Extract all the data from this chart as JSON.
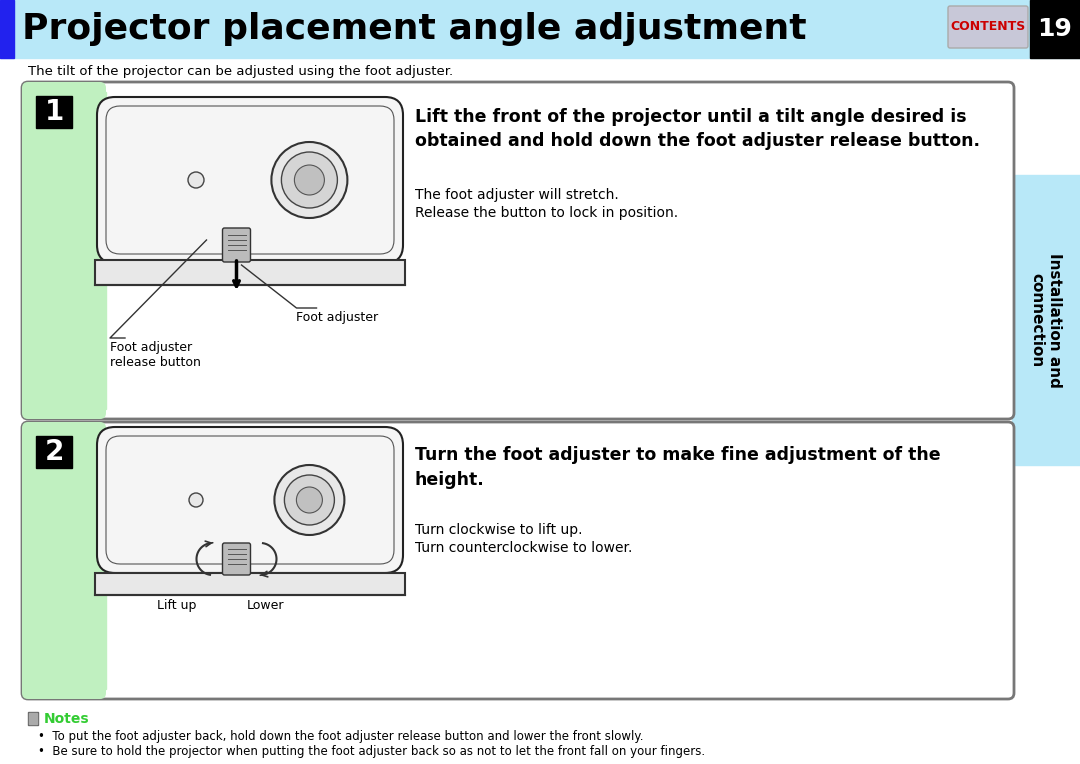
{
  "title": "Projector placement angle adjustment",
  "title_bg_color": "#b8e8f8",
  "title_text_color": "#000000",
  "title_bar_color": "#2222ee",
  "page_num": "19",
  "page_num_bg": "#000000",
  "contents_text": "CONTENTS",
  "contents_bg": "#c8c8d8",
  "contents_text_color": "#cc0000",
  "sidebar_text": "Installation and\nconnection",
  "sidebar_bg": "#b8e8f8",
  "subtitle": "The tilt of the projector can be adjusted using the foot adjuster.",
  "box1_num": "1",
  "box1_fill": "#ffffff",
  "box1_left_fill": "#c0f0c0",
  "box1_border": "#888888",
  "box1_bold_text": "Lift the front of the projector until a tilt angle desired is\nobtained and hold down the foot adjuster release button.",
  "box1_text1": "The foot adjuster will stretch.",
  "box1_text2": "Release the button to lock in position.",
  "box1_label1": "Foot adjuster\nrelease button",
  "box1_label2": "Foot adjuster",
  "box2_num": "2",
  "box2_fill": "#ffffff",
  "box2_left_fill": "#c0f0c0",
  "box2_border": "#888888",
  "box2_bold_text": "Turn the foot adjuster to make fine adjustment of the\nheight.",
  "box2_text1": "Turn clockwise to lift up.",
  "box2_text2": "Turn counterclockwise to lower.",
  "box2_label1": "Lift up",
  "box2_label2": "Lower",
  "notes_title": "Notes",
  "notes_color": "#33cc33",
  "note1": "To put the foot adjuster back, hold down the foot adjuster release button and lower the front slowly.",
  "note2": "Be sure to hold the projector when putting the foot adjuster back so as not to let the front fall on your fingers.",
  "bg_color": "#ffffff"
}
